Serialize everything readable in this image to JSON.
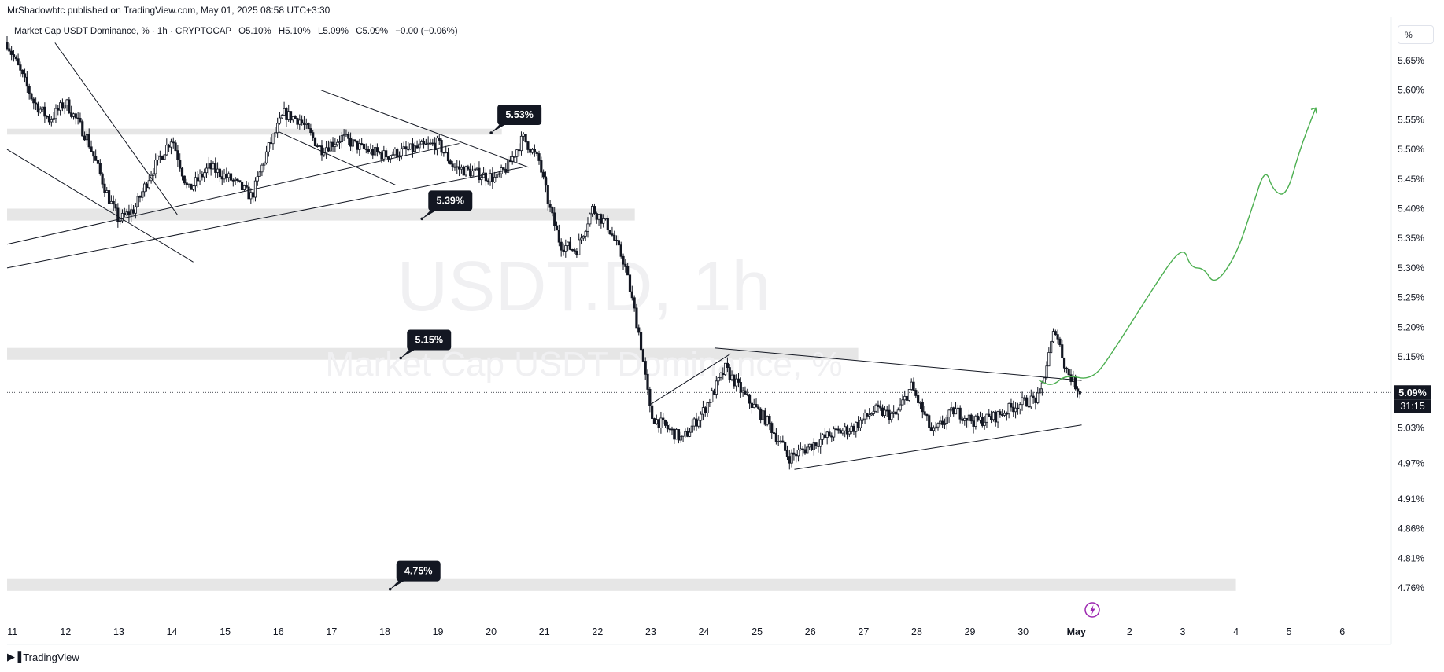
{
  "publisher_line": "MrShadowbtc published on TradingView.com, May 01, 2025 08:58 UTC+3:30",
  "legend": {
    "symbol": "Market Cap USDT Dominance, % · 1h · CRYPTOCAP",
    "open": "O5.10%",
    "high": "H5.10%",
    "low": "L5.09%",
    "close": "C5.09%",
    "change": "−0.00 (−0.06%)"
  },
  "scale_mode_label": "%",
  "watermark": {
    "main": "USDT.D, 1h",
    "sub": "Market Cap USDT Dominance, %"
  },
  "brand": {
    "logo_icon": "tradingview-logo-icon",
    "name": "TradingView"
  },
  "colors": {
    "candles": "#131722",
    "zones": "#e6e6e6",
    "projection": "#4caf50",
    "alert": "#9c27b0"
  },
  "chart_data": {
    "type": "candlestick",
    "title": "USDT.D, 1h",
    "ylabel": "%",
    "ylim": [
      4.735,
      5.675
    ],
    "y_ticks": [
      "5.65%",
      "5.60%",
      "5.55%",
      "5.50%",
      "5.45%",
      "5.40%",
      "5.35%",
      "5.30%",
      "5.25%",
      "5.20%",
      "5.15%",
      "5.03%",
      "4.97%",
      "4.91%",
      "4.86%",
      "4.81%",
      "4.76%"
    ],
    "x_ticks": [
      "11",
      "12",
      "13",
      "14",
      "15",
      "16",
      "17",
      "18",
      "19",
      "20",
      "21",
      "22",
      "23",
      "24",
      "25",
      "26",
      "27",
      "28",
      "29",
      "30",
      "May",
      "2",
      "3",
      "4",
      "5",
      "6"
    ],
    "current_price": {
      "value": 5.09,
      "label": "5.09%",
      "countdown": "31:15"
    },
    "price_path": [
      {
        "x": 10.9,
        "y": 5.68
      },
      {
        "x": 11.4,
        "y": 5.58
      },
      {
        "x": 11.7,
        "y": 5.55
      },
      {
        "x": 12.0,
        "y": 5.58
      },
      {
        "x": 12.4,
        "y": 5.52
      },
      {
        "x": 12.8,
        "y": 5.42
      },
      {
        "x": 13.0,
        "y": 5.38
      },
      {
        "x": 13.3,
        "y": 5.4
      },
      {
        "x": 13.6,
        "y": 5.46
      },
      {
        "x": 14.0,
        "y": 5.52
      },
      {
        "x": 14.3,
        "y": 5.43
      },
      {
        "x": 14.7,
        "y": 5.47
      },
      {
        "x": 15.1,
        "y": 5.45
      },
      {
        "x": 15.5,
        "y": 5.42
      },
      {
        "x": 15.8,
        "y": 5.5
      },
      {
        "x": 16.1,
        "y": 5.56
      },
      {
        "x": 16.4,
        "y": 5.55
      },
      {
        "x": 16.8,
        "y": 5.5
      },
      {
        "x": 17.2,
        "y": 5.52
      },
      {
        "x": 17.6,
        "y": 5.5
      },
      {
        "x": 18.0,
        "y": 5.49
      },
      {
        "x": 18.5,
        "y": 5.5
      },
      {
        "x": 19.0,
        "y": 5.51
      },
      {
        "x": 19.3,
        "y": 5.47
      },
      {
        "x": 19.7,
        "y": 5.46
      },
      {
        "x": 20.1,
        "y": 5.45
      },
      {
        "x": 20.3,
        "y": 5.47
      },
      {
        "x": 20.6,
        "y": 5.52
      },
      {
        "x": 20.9,
        "y": 5.48
      },
      {
        "x": 21.1,
        "y": 5.4
      },
      {
        "x": 21.3,
        "y": 5.34
      },
      {
        "x": 21.6,
        "y": 5.33
      },
      {
        "x": 21.9,
        "y": 5.4
      },
      {
        "x": 22.2,
        "y": 5.37
      },
      {
        "x": 22.5,
        "y": 5.31
      },
      {
        "x": 22.8,
        "y": 5.18
      },
      {
        "x": 23.0,
        "y": 5.05
      },
      {
        "x": 23.3,
        "y": 5.03
      },
      {
        "x": 23.6,
        "y": 5.01
      },
      {
        "x": 24.0,
        "y": 5.06
      },
      {
        "x": 24.4,
        "y": 5.13
      },
      {
        "x": 24.8,
        "y": 5.08
      },
      {
        "x": 25.2,
        "y": 5.04
      },
      {
        "x": 25.6,
        "y": 4.98
      },
      {
        "x": 26.0,
        "y": 5.0
      },
      {
        "x": 26.4,
        "y": 5.02
      },
      {
        "x": 26.8,
        "y": 5.03
      },
      {
        "x": 27.2,
        "y": 5.06
      },
      {
        "x": 27.6,
        "y": 5.05
      },
      {
        "x": 27.9,
        "y": 5.1
      },
      {
        "x": 28.3,
        "y": 5.02
      },
      {
        "x": 28.7,
        "y": 5.06
      },
      {
        "x": 29.1,
        "y": 5.04
      },
      {
        "x": 29.5,
        "y": 5.05
      },
      {
        "x": 29.9,
        "y": 5.07
      },
      {
        "x": 30.3,
        "y": 5.08
      },
      {
        "x": 30.6,
        "y": 5.2
      },
      {
        "x": 30.8,
        "y": 5.13
      },
      {
        "x": 31.0,
        "y": 5.1
      },
      {
        "x": 31.1,
        "y": 5.09
      }
    ],
    "projection_path": [
      {
        "x": 30.3,
        "y": 5.11
      },
      {
        "x": 30.55,
        "y": 5.1
      },
      {
        "x": 30.8,
        "y": 5.12
      },
      {
        "x": 31.3,
        "y": 5.11
      },
      {
        "x": 31.7,
        "y": 5.16
      },
      {
        "x": 32.4,
        "y": 5.26
      },
      {
        "x": 33.0,
        "y": 5.34
      },
      {
        "x": 33.15,
        "y": 5.3
      },
      {
        "x": 33.4,
        "y": 5.3
      },
      {
        "x": 33.6,
        "y": 5.27
      },
      {
        "x": 34.0,
        "y": 5.32
      },
      {
        "x": 34.3,
        "y": 5.4
      },
      {
        "x": 34.55,
        "y": 5.47
      },
      {
        "x": 34.7,
        "y": 5.43
      },
      {
        "x": 34.95,
        "y": 5.42
      },
      {
        "x": 35.2,
        "y": 5.5
      },
      {
        "x": 35.5,
        "y": 5.57
      }
    ],
    "zones": [
      {
        "x0": 10.9,
        "x1": 20.2,
        "y0": 5.525,
        "y1": 5.535
      },
      {
        "x0": 10.9,
        "x1": 22.7,
        "y0": 5.38,
        "y1": 5.4
      },
      {
        "x0": 10.9,
        "x1": 26.9,
        "y0": 5.145,
        "y1": 5.165
      },
      {
        "x0": 10.9,
        "x1": 34.0,
        "y0": 4.755,
        "y1": 4.775
      }
    ],
    "levels": [
      {
        "label": "5.53%",
        "x": 20.0,
        "y": 5.528
      },
      {
        "label": "5.39%",
        "x": 18.7,
        "y": 5.383
      },
      {
        "label": "5.15%",
        "x": 18.3,
        "y": 5.148
      },
      {
        "label": "4.75%",
        "x": 18.1,
        "y": 4.758
      }
    ],
    "trendlines": [
      {
        "x0": 11.8,
        "y0": 5.68,
        "x1": 14.1,
        "y1": 5.39
      },
      {
        "x0": 10.9,
        "y0": 5.5,
        "x1": 14.4,
        "y1": 5.31
      },
      {
        "x0": 10.9,
        "y0": 5.34,
        "x1": 19.4,
        "y1": 5.51
      },
      {
        "x0": 10.9,
        "y0": 5.3,
        "x1": 20.6,
        "y1": 5.47
      },
      {
        "x0": 16.8,
        "y0": 5.6,
        "x1": 20.7,
        "y1": 5.47
      },
      {
        "x0": 16.0,
        "y0": 5.53,
        "x1": 18.2,
        "y1": 5.44
      },
      {
        "x0": 23.0,
        "y0": 5.07,
        "x1": 24.5,
        "y1": 5.155
      },
      {
        "x0": 24.2,
        "y0": 5.165,
        "x1": 31.1,
        "y1": 5.11
      },
      {
        "x0": 25.7,
        "y0": 4.96,
        "x1": 31.1,
        "y1": 5.035
      }
    ]
  }
}
